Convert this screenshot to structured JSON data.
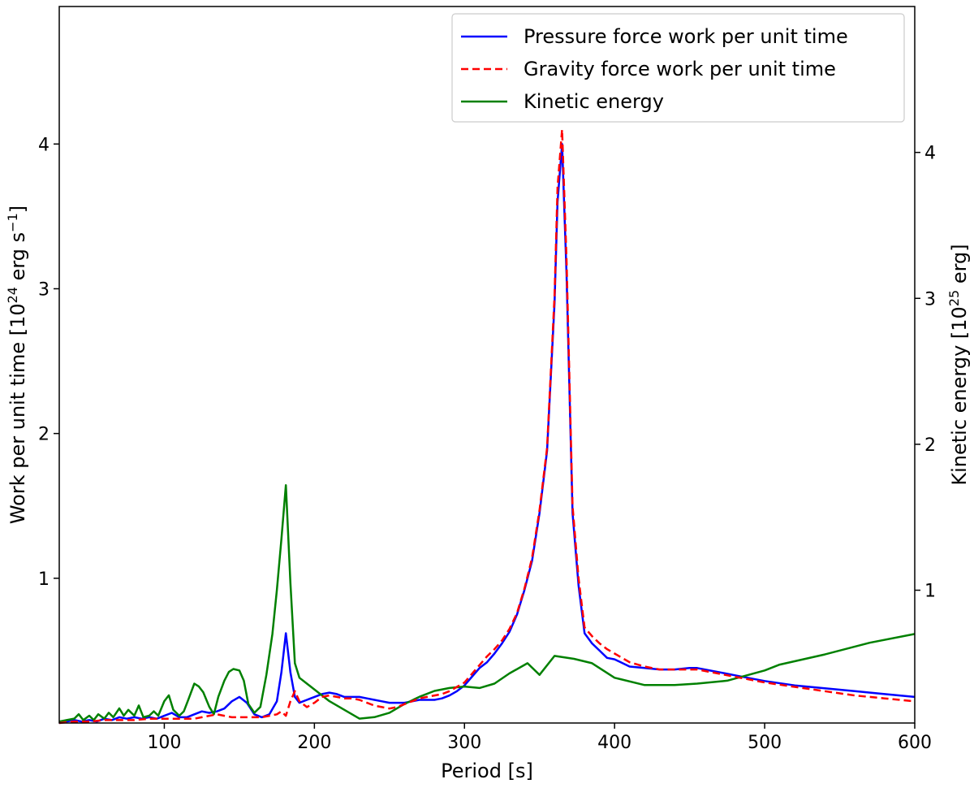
{
  "chart_data": {
    "type": "line",
    "xlabel": "Period [s]",
    "xlim": [
      30,
      600
    ],
    "x_ticks": [
      100,
      200,
      300,
      400,
      500,
      600
    ],
    "ylabel_left": {
      "base": "Work per unit time [10",
      "sup": "24",
      "mid": " erg s",
      "sup2": "−1",
      "end": "]"
    },
    "ylabel_right": {
      "base": "Kinetic energy [10",
      "sup": "25",
      "end": " erg]"
    },
    "ylim_left": [
      0.0,
      4.95
    ],
    "ylim_right": [
      0.09,
      5.0
    ],
    "y_ticks_left": [
      1,
      2,
      3,
      4
    ],
    "y_ticks_right": [
      1,
      2,
      3,
      4
    ],
    "legend_position": "top-right",
    "series": [
      {
        "name": "Pressure force work per unit time",
        "axis": "left",
        "color": "#0000ff",
        "dash": "solid",
        "x": [
          30,
          35,
          40,
          45,
          50,
          55,
          60,
          65,
          70,
          75,
          80,
          85,
          90,
          95,
          100,
          105,
          110,
          115,
          120,
          125,
          130,
          135,
          140,
          145,
          150,
          155,
          160,
          165,
          170,
          175,
          178,
          181,
          184,
          187,
          190,
          195,
          200,
          205,
          210,
          215,
          220,
          225,
          230,
          235,
          240,
          245,
          250,
          255,
          260,
          265,
          270,
          275,
          280,
          285,
          290,
          295,
          300,
          305,
          310,
          315,
          320,
          325,
          330,
          335,
          340,
          345,
          350,
          355,
          360,
          362,
          365,
          368,
          372,
          376,
          380,
          385,
          390,
          395,
          400,
          410,
          420,
          430,
          440,
          450,
          455,
          460,
          470,
          480,
          490,
          500,
          520,
          540,
          560,
          580,
          600
        ],
        "y": [
          0.0,
          0.01,
          0.02,
          0.01,
          0.02,
          0.01,
          0.03,
          0.02,
          0.04,
          0.03,
          0.04,
          0.03,
          0.04,
          0.03,
          0.05,
          0.07,
          0.04,
          0.04,
          0.06,
          0.08,
          0.07,
          0.08,
          0.1,
          0.15,
          0.18,
          0.14,
          0.06,
          0.04,
          0.06,
          0.15,
          0.35,
          0.62,
          0.35,
          0.18,
          0.14,
          0.16,
          0.18,
          0.2,
          0.21,
          0.2,
          0.18,
          0.18,
          0.18,
          0.17,
          0.16,
          0.15,
          0.14,
          0.14,
          0.14,
          0.15,
          0.16,
          0.16,
          0.16,
          0.17,
          0.19,
          0.22,
          0.26,
          0.32,
          0.38,
          0.42,
          0.48,
          0.55,
          0.63,
          0.75,
          0.92,
          1.12,
          1.45,
          1.88,
          2.9,
          3.6,
          4.0,
          3.1,
          1.45,
          0.95,
          0.62,
          0.55,
          0.5,
          0.45,
          0.44,
          0.39,
          0.38,
          0.37,
          0.37,
          0.38,
          0.38,
          0.37,
          0.35,
          0.33,
          0.31,
          0.29,
          0.26,
          0.24,
          0.22,
          0.2,
          0.18
        ]
      },
      {
        "name": "Gravity force work per unit time",
        "axis": "left",
        "color": "#ff0000",
        "dash": "dashed",
        "x": [
          30,
          40,
          50,
          60,
          70,
          80,
          90,
          100,
          110,
          120,
          125,
          130,
          135,
          140,
          145,
          150,
          155,
          160,
          165,
          170,
          175,
          178,
          181,
          184,
          187,
          190,
          195,
          200,
          205,
          210,
          215,
          220,
          225,
          230,
          235,
          240,
          245,
          250,
          255,
          260,
          265,
          270,
          275,
          280,
          285,
          290,
          295,
          300,
          305,
          310,
          315,
          320,
          325,
          330,
          335,
          340,
          345,
          350,
          355,
          360,
          362,
          365,
          368,
          372,
          376,
          380,
          385,
          390,
          395,
          400,
          410,
          420,
          430,
          440,
          450,
          455,
          460,
          470,
          480,
          490,
          500,
          520,
          540,
          560,
          580,
          600
        ],
        "y": [
          0.0,
          0.01,
          0.01,
          0.02,
          0.02,
          0.02,
          0.03,
          0.03,
          0.03,
          0.03,
          0.04,
          0.05,
          0.06,
          0.05,
          0.04,
          0.04,
          0.04,
          0.04,
          0.04,
          0.05,
          0.06,
          0.08,
          0.05,
          0.15,
          0.22,
          0.15,
          0.11,
          0.14,
          0.18,
          0.19,
          0.18,
          0.17,
          0.17,
          0.16,
          0.14,
          0.12,
          0.11,
          0.1,
          0.11,
          0.13,
          0.15,
          0.17,
          0.18,
          0.19,
          0.2,
          0.22,
          0.25,
          0.28,
          0.34,
          0.4,
          0.46,
          0.51,
          0.57,
          0.65,
          0.76,
          0.93,
          1.14,
          1.47,
          1.9,
          2.95,
          3.7,
          4.1,
          3.2,
          1.5,
          1.0,
          0.66,
          0.6,
          0.55,
          0.51,
          0.48,
          0.42,
          0.39,
          0.37,
          0.37,
          0.37,
          0.37,
          0.36,
          0.34,
          0.32,
          0.3,
          0.28,
          0.25,
          0.22,
          0.19,
          0.17,
          0.15
        ]
      },
      {
        "name": "Kinetic energy",
        "axis": "right",
        "color": "#008000",
        "dash": "solid",
        "x": [
          30,
          35,
          40,
          43,
          46,
          50,
          53,
          56,
          60,
          63,
          66,
          70,
          73,
          76,
          80,
          83,
          86,
          90,
          93,
          96,
          100,
          103,
          106,
          110,
          113,
          116,
          120,
          123,
          126,
          130,
          133,
          136,
          140,
          143,
          146,
          150,
          153,
          156,
          160,
          164,
          168,
          172,
          175,
          178,
          181,
          184,
          187,
          190,
          195,
          200,
          210,
          220,
          230,
          240,
          250,
          260,
          270,
          280,
          290,
          300,
          310,
          320,
          330,
          342,
          350,
          360,
          373,
          385,
          400,
          420,
          440,
          455,
          475,
          500,
          510,
          540,
          570,
          600
        ],
        "y": [
          0.1,
          0.11,
          0.12,
          0.15,
          0.11,
          0.14,
          0.11,
          0.15,
          0.12,
          0.16,
          0.13,
          0.19,
          0.14,
          0.18,
          0.14,
          0.21,
          0.13,
          0.14,
          0.17,
          0.14,
          0.24,
          0.28,
          0.18,
          0.14,
          0.17,
          0.25,
          0.36,
          0.34,
          0.3,
          0.2,
          0.15,
          0.27,
          0.38,
          0.44,
          0.46,
          0.45,
          0.38,
          0.22,
          0.16,
          0.2,
          0.42,
          0.7,
          1.0,
          1.35,
          1.72,
          1.05,
          0.5,
          0.4,
          0.36,
          0.32,
          0.24,
          0.18,
          0.12,
          0.13,
          0.16,
          0.22,
          0.27,
          0.31,
          0.33,
          0.34,
          0.33,
          0.36,
          0.43,
          0.5,
          0.42,
          0.55,
          0.53,
          0.5,
          0.4,
          0.35,
          0.35,
          0.36,
          0.38,
          0.45,
          0.49,
          0.56,
          0.64,
          0.7
        ]
      }
    ]
  }
}
